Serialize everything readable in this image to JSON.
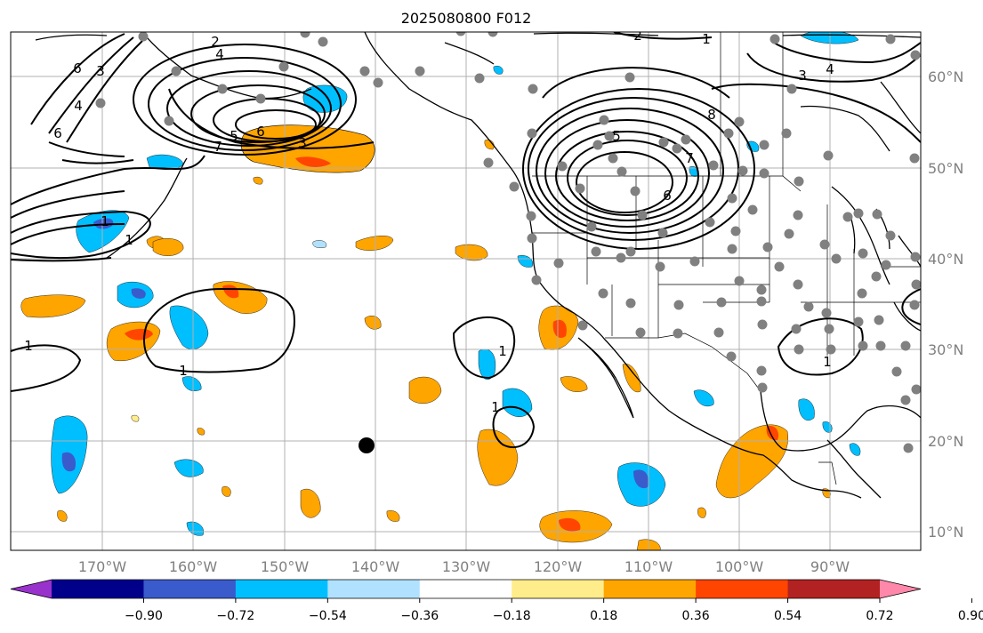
{
  "title": "2025080800 F012",
  "lon_ticks": [
    "170°W",
    "160°W",
    "150°W",
    "140°W",
    "130°W",
    "120°W",
    "110°W",
    "100°W",
    "90°W"
  ],
  "lat_ticks": [
    "60°N",
    "50°N",
    "40°N",
    "30°N",
    "20°N",
    "10°N"
  ],
  "colorbar": {
    "colors": [
      "#9932CC",
      "#00008B",
      "#3A5BCC",
      "#00BFFF",
      "#B0E2FF",
      "#FFFFFF",
      "#FFEC8B",
      "#FFA500",
      "#FF4500",
      "#B22222",
      "#FF88AA"
    ],
    "tick_labels": [
      "−0.90",
      "−0.72",
      "−0.54",
      "−0.36",
      "−0.18",
      "0.18",
      "0.36",
      "0.54",
      "0.72",
      "0.90"
    ]
  },
  "contour_labels": {
    "nw_2": "2",
    "nw_4": "4",
    "nw_5": "5",
    "nw_6": "6",
    "nw_3": "3",
    "nw_7": "7",
    "gulf_1": "1",
    "west_6a": "6",
    "west_4": "4",
    "west_3": "3",
    "west_6b": "6",
    "aleut_1": "1",
    "low_1": "1",
    "left_1": "1",
    "can_2": "2",
    "can_1": "1",
    "can_4": "4",
    "can_3": "3",
    "can_5": "5",
    "can_7": "7",
    "can_6": "6",
    "can_8": "8",
    "baja_1a": "1",
    "baja_1b": "1",
    "gulfmex_1": "1"
  },
  "colors": {
    "station": "#808080",
    "grid": "#b0b0b0",
    "contour": "#000000"
  }
}
